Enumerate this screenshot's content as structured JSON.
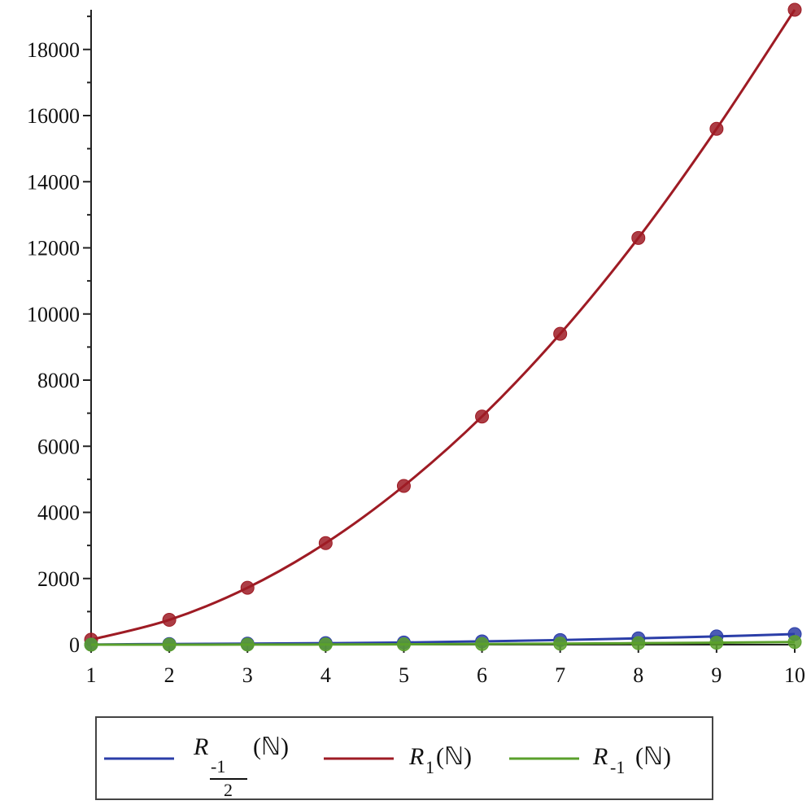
{
  "chart_data": {
    "type": "line",
    "title": "",
    "xlabel": "",
    "ylabel": "",
    "x": [
      1,
      2,
      3,
      4,
      5,
      6,
      7,
      8,
      9,
      10
    ],
    "xlim": [
      1,
      10
    ],
    "ylim": [
      0,
      19200
    ],
    "x_ticks": [
      "1",
      "2",
      "3",
      "4",
      "5",
      "6",
      "7",
      "8",
      "9",
      "10"
    ],
    "y_ticks": [
      "0",
      "2000",
      "4000",
      "6000",
      "8000",
      "10000",
      "12000",
      "14000",
      "16000",
      "18000"
    ],
    "grid": false,
    "legend_position": "bottom",
    "markers": true,
    "series": [
      {
        "key": "r_neg_half",
        "legend": {
          "base": "R",
          "sub_num": "-1",
          "sub_den": "2",
          "arg": "(ℕ)"
        },
        "color": "#2b3ea8",
        "values": [
          4,
          20,
          30,
          45,
          65,
          100,
          140,
          190,
          250,
          320
        ]
      },
      {
        "key": "r_one",
        "legend": {
          "base": "R",
          "sub": "1",
          "arg": "(ℕ)"
        },
        "color": "#9e1b24",
        "values": [
          150,
          750,
          1720,
          3070,
          4800,
          6900,
          9400,
          12300,
          15600,
          19200
        ]
      },
      {
        "key": "r_neg_one",
        "legend": {
          "base": "R",
          "sub": "-1",
          "arg": "(ℕ)"
        },
        "color": "#5aa02c",
        "values": [
          0,
          1,
          2,
          5,
          10,
          20,
          30,
          45,
          60,
          80
        ]
      }
    ]
  }
}
